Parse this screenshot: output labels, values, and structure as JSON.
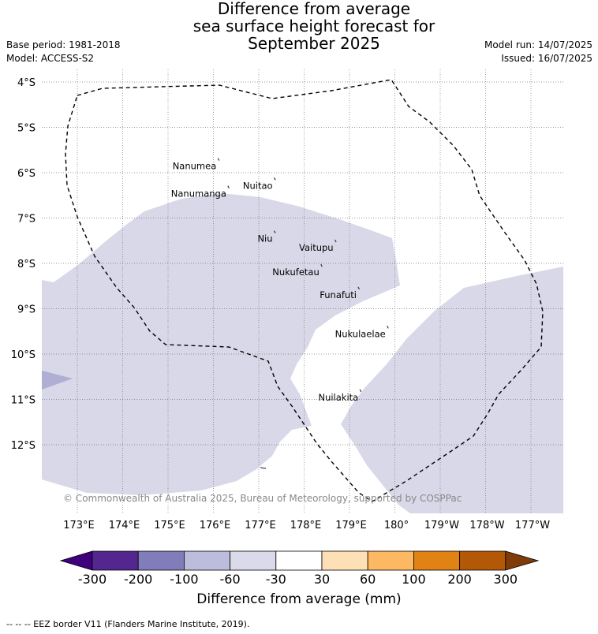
{
  "title": {
    "line1": "Difference from average",
    "line2": "sea surface height forecast for",
    "line3": "September 2025"
  },
  "meta": {
    "base_period": "Base period: 1981-2018",
    "model": "Model: ACCESS-S2",
    "model_run": "Model run: 14/07/2025",
    "issued": "Issued: 16/07/2025"
  },
  "map": {
    "lat_labels": [
      "4°S",
      "5°S",
      "6°S",
      "7°S",
      "8°S",
      "9°S",
      "10°S",
      "11°S",
      "12°S"
    ],
    "lon_labels": [
      "173°E",
      "174°E",
      "175°E",
      "176°E",
      "177°E",
      "178°E",
      "179°E",
      "180°",
      "179°W",
      "178°W",
      "177°W"
    ],
    "places": [
      {
        "name": "Nanumea",
        "lon": 176.1,
        "lat": -5.68
      },
      {
        "name": "Nuitao",
        "lon": 177.34,
        "lat": -6.11
      },
      {
        "name": "Nanumanga",
        "lon": 176.32,
        "lat": -6.29
      },
      {
        "name": "Niu",
        "lon": 177.34,
        "lat": -7.28
      },
      {
        "name": "Vaitupu",
        "lon": 178.68,
        "lat": -7.48
      },
      {
        "name": "Nukufetau",
        "lon": 178.37,
        "lat": -8.02
      },
      {
        "name": "Funafuti",
        "lon": 179.19,
        "lat": -8.52
      },
      {
        "name": "Nukulaelae",
        "lon": 179.83,
        "lat": -9.38
      },
      {
        "name": "Nuilakita",
        "lon": 179.23,
        "lat": -10.78
      }
    ],
    "copyright": "© Commonwealth of Australia 2025, Bureau of Meteorology, supported by COSPPac",
    "eez_line_color": "#000000"
  },
  "colorbar": {
    "title": "Difference from average (mm)",
    "ticks": [
      "-300",
      "-200",
      "-100",
      "-60",
      "-30",
      "30",
      "60",
      "100",
      "200",
      "300"
    ],
    "colors": [
      "#3f007d",
      "#54278f",
      "#807dba",
      "#bcbddc",
      "#dadaeb",
      "#ffffff",
      "#fee0b6",
      "#fdb863",
      "#e08214",
      "#b35806",
      "#7f3b08"
    ]
  },
  "footer": {
    "eez_note": "-- -- -- EEZ border V11 (Flanders Marine Institute, 2019)."
  }
}
